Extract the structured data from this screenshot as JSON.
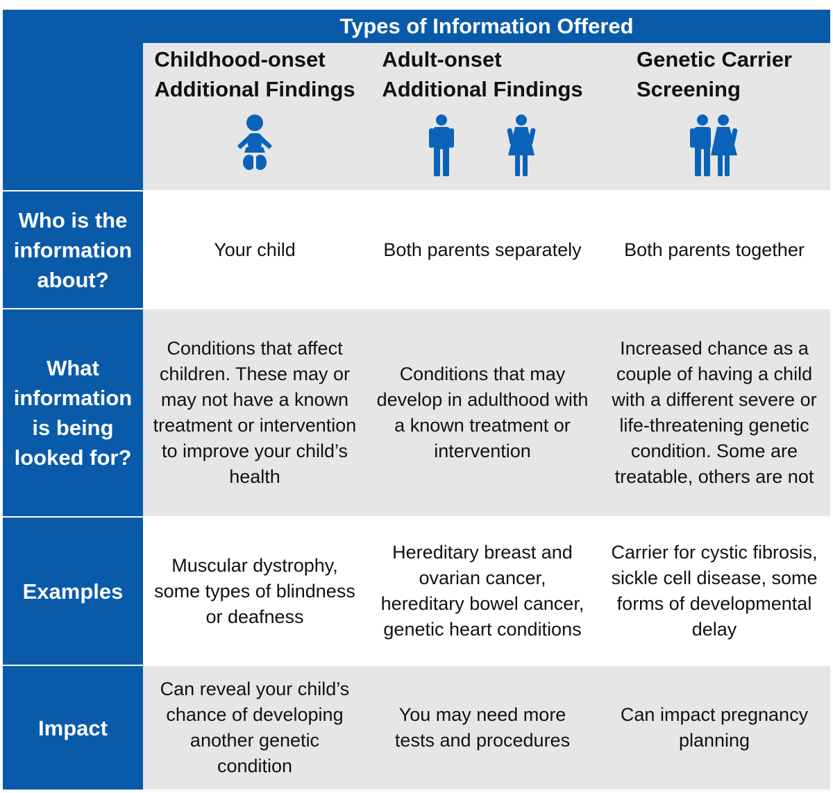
{
  "header": {
    "title": "Types of Information Offered"
  },
  "columns": [
    {
      "title_line1": "Childhood-onset",
      "title_line2": "Additional Findings",
      "icons": [
        "baby-icon"
      ]
    },
    {
      "title_line1": "Adult-onset",
      "title_line2": "Additional Findings",
      "icons": [
        "man-icon",
        "woman-icon"
      ]
    },
    {
      "title_line1": "Genetic Carrier",
      "title_line2": "Screening",
      "icons": [
        "couple-icon"
      ]
    }
  ],
  "rows": [
    {
      "label": "Who is the information about?",
      "cells": [
        "Your child",
        "Both parents separately",
        "Both parents together"
      ]
    },
    {
      "label": "What information is being looked for?",
      "cells": [
        "Conditions that affect children. These may or may not have a known treatment or intervention to improve your child’s health",
        "Conditions that may develop in adulthood with a known treatment or intervention",
        "Increased chance as a couple of having a child with a different severe or life-threatening genetic condition. Some are treatable, others are not"
      ]
    },
    {
      "label": "Examples",
      "cells": [
        "Muscular dystrophy, some types of blindness or deafness",
        "Hereditary breast and ovarian cancer, hereditary bowel cancer, genetic heart conditions",
        "Carrier for cystic fibrosis, sickle cell disease, some forms of developmental delay"
      ]
    },
    {
      "label": "Impact",
      "cells": [
        "Can reveal your child’s chance of developing another genetic condition",
        "You may need more tests and procedures",
        "Can impact pregnancy planning"
      ]
    }
  ],
  "colors": {
    "header_blue": "#0a5aaa",
    "icon_blue": "#0a63b8",
    "gray": "#e6e6e6"
  }
}
